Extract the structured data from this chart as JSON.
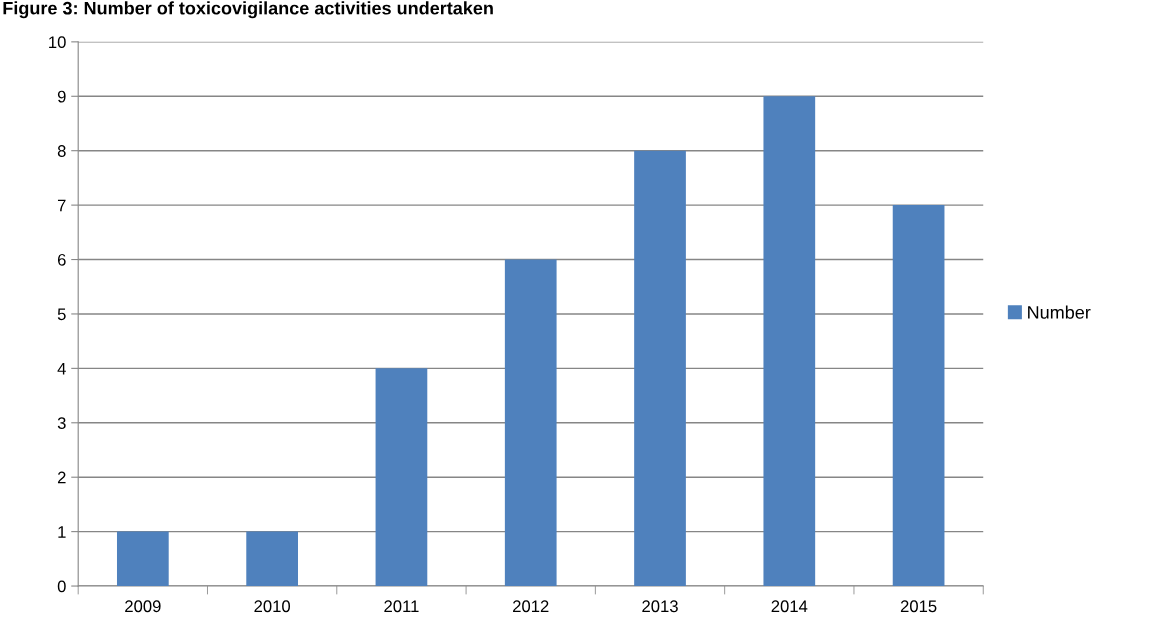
{
  "chart_data": {
    "type": "bar",
    "title": "Figure 3: Number of toxicovigilance activities undertaken",
    "categories": [
      "2009",
      "2010",
      "2011",
      "2012",
      "2013",
      "2014",
      "2015"
    ],
    "series": [
      {
        "name": "Number",
        "color": "#4f81bd",
        "values": [
          1,
          1,
          4,
          6,
          8,
          9,
          7
        ]
      }
    ],
    "ylim": [
      0,
      10
    ],
    "yticks": [
      0,
      1,
      2,
      3,
      4,
      5,
      6,
      7,
      8,
      9,
      10
    ],
    "grid": "y",
    "legend": "right"
  }
}
